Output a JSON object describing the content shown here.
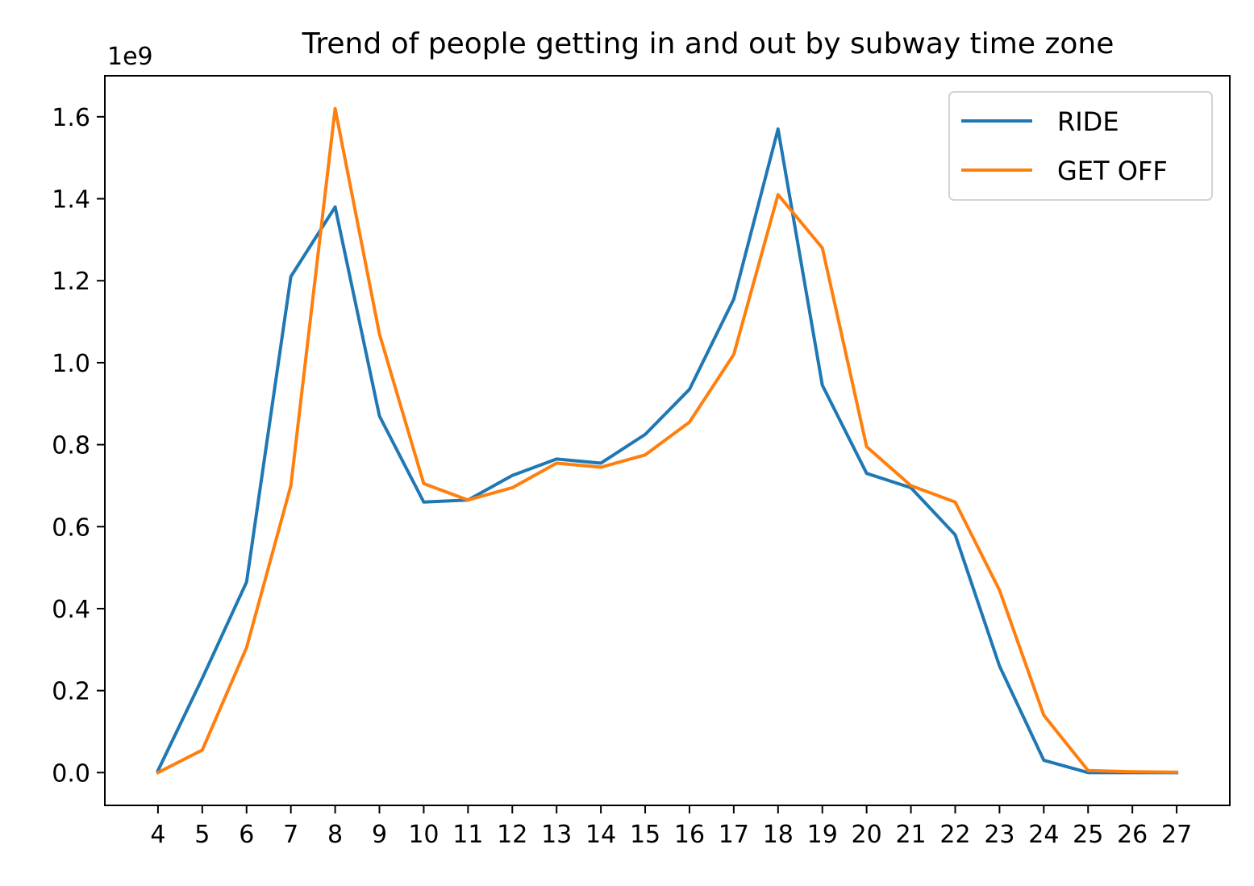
{
  "chart_data": {
    "type": "line",
    "title": "Trend of people getting in and out by subway time zone",
    "xlabel": "",
    "ylabel": "",
    "y_scale_label": "1e9",
    "x": [
      4,
      5,
      6,
      7,
      8,
      9,
      10,
      11,
      12,
      13,
      14,
      15,
      16,
      17,
      18,
      19,
      20,
      21,
      22,
      23,
      24,
      25,
      26,
      27
    ],
    "x_tick_labels": [
      "4",
      "5",
      "6",
      "7",
      "8",
      "9",
      "10",
      "11",
      "12",
      "13",
      "14",
      "15",
      "16",
      "17",
      "18",
      "19",
      "20",
      "21",
      "22",
      "23",
      "24",
      "25",
      "26",
      "27"
    ],
    "y_ticks": [
      0.0,
      0.2,
      0.4,
      0.6,
      0.8,
      1.0,
      1.2,
      1.4,
      1.6
    ],
    "y_tick_labels": [
      "0.0",
      "0.2",
      "0.4",
      "0.6",
      "0.8",
      "1.0",
      "1.2",
      "1.4",
      "1.6"
    ],
    "xlim": [
      2.8,
      28.2
    ],
    "ylim": [
      -0.08,
      1.7
    ],
    "grid": false,
    "legend_position": "top-right",
    "series": [
      {
        "name": "RIDE",
        "color": "#1f77b4",
        "values": [
          0.005,
          0.23,
          0.465,
          1.21,
          1.38,
          0.87,
          0.66,
          0.665,
          0.725,
          0.765,
          0.755,
          0.825,
          0.935,
          1.155,
          1.57,
          0.945,
          0.73,
          0.695,
          0.58,
          0.26,
          0.03,
          0.0,
          0.0,
          0.0
        ]
      },
      {
        "name": "GET OFF",
        "color": "#ff7f0e",
        "values": [
          0.0,
          0.055,
          0.305,
          0.7,
          1.62,
          1.07,
          0.705,
          0.665,
          0.695,
          0.755,
          0.745,
          0.775,
          0.855,
          1.02,
          1.41,
          1.28,
          0.795,
          0.7,
          0.66,
          0.445,
          0.14,
          0.005,
          0.002,
          0.001
        ]
      }
    ]
  }
}
